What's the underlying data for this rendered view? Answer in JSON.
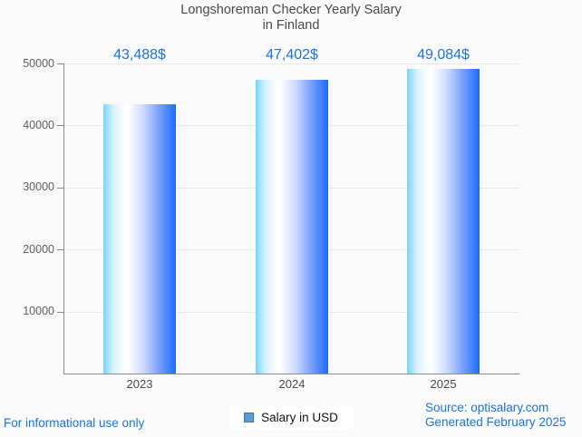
{
  "header": {
    "title_line1": "Longshoreman Checker Yearly Salary",
    "title_line2": "in Finland"
  },
  "chart_data": {
    "type": "bar",
    "title": "Longshoreman Checker Yearly Salary in Finland",
    "categories": [
      "2023",
      "2024",
      "2025"
    ],
    "values": [
      43488,
      47402,
      49084
    ],
    "value_labels": [
      "43,488$",
      "47,402$",
      "49,084$"
    ],
    "series_name": "Salary in USD",
    "xlabel": "",
    "ylabel": "",
    "ylim": [
      0,
      50000
    ],
    "yticks": [
      10000,
      20000,
      30000,
      40000,
      50000
    ],
    "ytick_labels": [
      "10000",
      "20000",
      "30000",
      "40000",
      "50000"
    ],
    "grid": "horizontal",
    "legend_position": "bottom-center",
    "colors": {
      "background": "#fafafa",
      "title_text": "#4a4a4a",
      "axis_line": "#8a8a8a",
      "gridline": "#e8e8e8",
      "ytick_text": "#5e5e5e",
      "xtick_text": "#4a4a4a",
      "value_label_text": "#1a73e8",
      "bar_gradient_left": "#79d3fc",
      "bar_gradient_middle": "#ffffff",
      "bar_gradient_right": "#1a6cfa",
      "legend_marker_fill": "#5b9bd5",
      "legend_marker_border": "#3f74ab"
    }
  },
  "legend": {
    "label": "Salary in USD"
  },
  "footer": {
    "disclaimer": "For informational use only",
    "source_line1": "Source: optisalary.com",
    "source_line2": "Generated February 2025"
  }
}
